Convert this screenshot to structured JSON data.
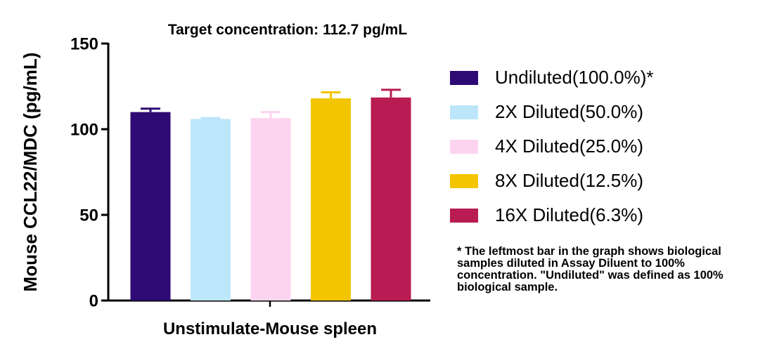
{
  "chart_data": {
    "type": "bar",
    "title": "Target concentration: 112.7 pg/mL",
    "ylabel": "Mouse CCL22/MDC (pg/mL)",
    "xlabel": "Unstimulate-Mouse spleen",
    "ylim": [
      0,
      150
    ],
    "yticks": [
      0,
      50,
      100,
      150
    ],
    "grid": false,
    "legend_position": "right",
    "series": [
      {
        "name": "Undiluted(100.0%)*",
        "value": 110,
        "error": 2,
        "color": "#2e0a74"
      },
      {
        "name": "2X Diluted(50.0%)",
        "value": 106,
        "error": 0.5,
        "color": "#bde6fb"
      },
      {
        "name": "4X Diluted(25.0%)",
        "value": 106.5,
        "error": 3.5,
        "color": "#fdd4f0"
      },
      {
        "name": "8X Diluted(12.5%)",
        "value": 118,
        "error": 3.5,
        "color": "#f2c500"
      },
      {
        "name": "16X Diluted(6.3%)",
        "value": 118.5,
        "error": 4.5,
        "color": "#b81c52"
      }
    ]
  },
  "note": "* The leftmost bar in the graph shows biological samples diluted in Assay Diluent to 100% concentration. \"Undiluted\" was defined as 100% biological sample."
}
